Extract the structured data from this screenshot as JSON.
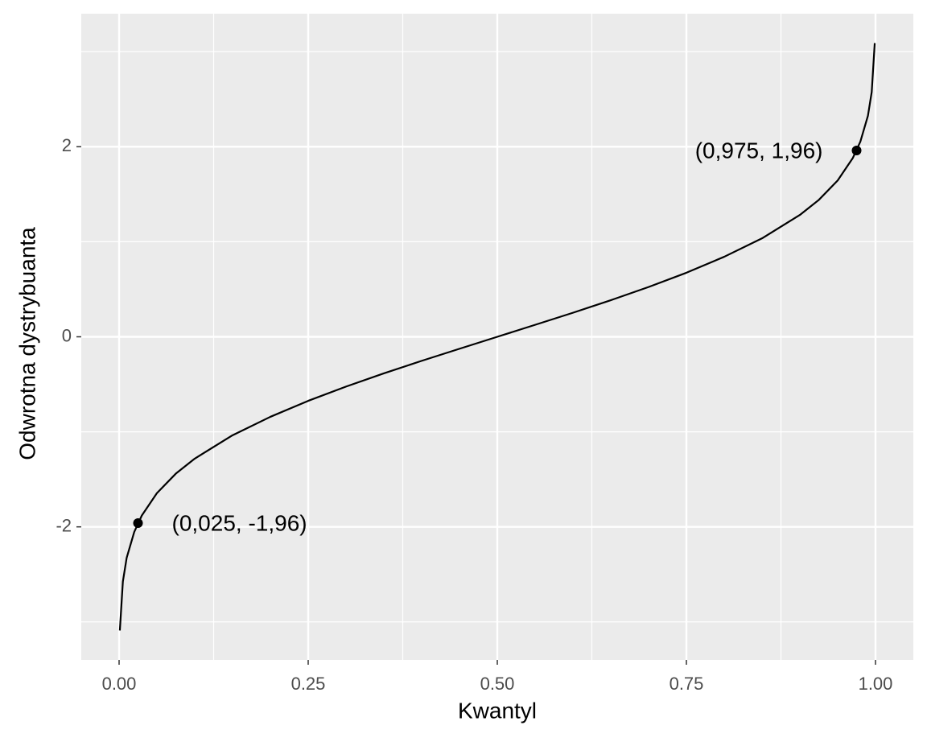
{
  "chart_data": {
    "type": "line",
    "x_label": "Kwantyl",
    "y_label": "Odwrotna dystrybuanta",
    "x": [
      0.001,
      0.005,
      0.01,
      0.02,
      0.03,
      0.05,
      0.075,
      0.1,
      0.15,
      0.2,
      0.25,
      0.3,
      0.35,
      0.4,
      0.45,
      0.5,
      0.55,
      0.6,
      0.65,
      0.7,
      0.75,
      0.8,
      0.85,
      0.9,
      0.925,
      0.95,
      0.97,
      0.98,
      0.99,
      0.995,
      0.999
    ],
    "series": [
      {
        "color": "#000000",
        "values": [
          -3.09,
          -2.576,
          -2.326,
          -2.054,
          -1.881,
          -1.645,
          -1.44,
          -1.282,
          -1.036,
          -0.842,
          -0.674,
          -0.524,
          -0.385,
          -0.253,
          -0.126,
          0,
          0.126,
          0.253,
          0.385,
          0.524,
          0.674,
          0.842,
          1.036,
          1.282,
          1.44,
          1.645,
          1.881,
          2.054,
          2.326,
          2.576,
          3.09
        ]
      }
    ],
    "points": [
      {
        "x": 0.025,
        "y": -1.96,
        "label": "(0,025, -1,96)"
      },
      {
        "x": 0.975,
        "y": 1.96,
        "label": "(0,975, 1,96)"
      }
    ],
    "xlim": [
      -0.05,
      1.05
    ],
    "ylim": [
      -3.4,
      3.4
    ],
    "xticks": [
      {
        "value": 0,
        "label": "0.00"
      },
      {
        "value": 0.25,
        "label": "0.25"
      },
      {
        "value": 0.5,
        "label": "0.50"
      },
      {
        "value": 0.75,
        "label": "0.75"
      },
      {
        "value": 1,
        "label": "1.00"
      }
    ],
    "yticks": [
      -2,
      0,
      2
    ],
    "xminor": [
      0.125,
      0.375,
      0.625,
      0.875
    ],
    "yminor": [
      -3,
      -1,
      1,
      3
    ],
    "grid": true
  }
}
